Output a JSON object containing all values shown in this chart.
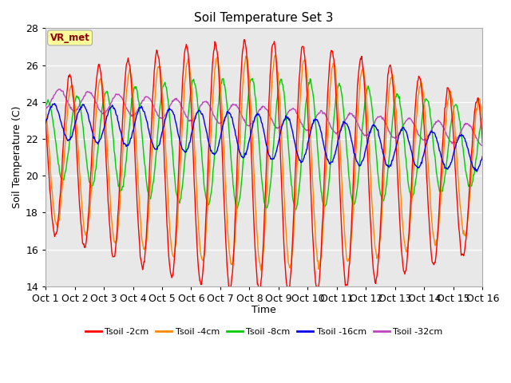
{
  "title": "Soil Temperature Set 3",
  "xlabel": "Time",
  "ylabel": "Soil Temperature (C)",
  "ylim": [
    14,
    28
  ],
  "xlim": [
    0,
    360
  ],
  "plot_bg_color": "#e8e8e8",
  "x_tick_labels": [
    "Oct 1",
    "Oct 2",
    "Oct 3",
    "Oct 4",
    "Oct 5",
    "Oct 6",
    "Oct 7",
    "Oct 8",
    "Oct 9",
    "Oct 10",
    "Oct 11",
    "Oct 12",
    "Oct 13",
    "Oct 14",
    "Oct 15",
    "Oct 16"
  ],
  "series_colors": [
    "#ff0000",
    "#ff8800",
    "#00cc00",
    "#0000ee",
    "#bb44bb"
  ],
  "series_labels": [
    "Tsoil -2cm",
    "Tsoil -4cm",
    "Tsoil -8cm",
    "Tsoil -16cm",
    "Tsoil -32cm"
  ],
  "annotation_text": "VR_met",
  "annotation_color": "#8b0000",
  "annotation_bg": "#ffff99",
  "n_points": 721
}
